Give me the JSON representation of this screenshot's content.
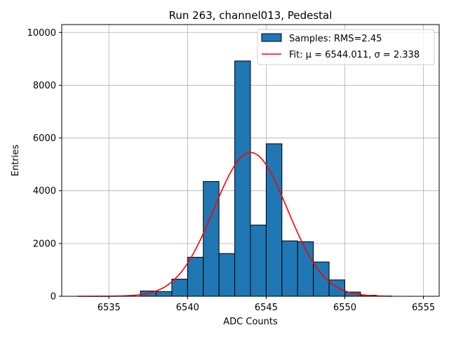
{
  "chart_data": {
    "type": "bar",
    "title": "Run 263, channel013, Pedestal",
    "xlabel": "ADC Counts",
    "ylabel": "Entries",
    "xlim": [
      6532.0,
      6556.0
    ],
    "ylim": [
      0,
      10300
    ],
    "xticks": [
      6535,
      6540,
      6545,
      6550,
      6555
    ],
    "yticks": [
      0,
      2000,
      4000,
      6000,
      8000,
      10000
    ],
    "grid": true,
    "legend_placement": "top-right",
    "bar_color": "#1f77b4",
    "fit_color": "#ff0000",
    "bins": [
      {
        "left": 6537,
        "right": 6538,
        "value": 200
      },
      {
        "left": 6538,
        "right": 6539,
        "value": 180
      },
      {
        "left": 6539,
        "right": 6540,
        "value": 650
      },
      {
        "left": 6540,
        "right": 6541,
        "value": 1480
      },
      {
        "left": 6541,
        "right": 6542,
        "value": 4350
      },
      {
        "left": 6542,
        "right": 6543,
        "value": 1620
      },
      {
        "left": 6543,
        "right": 6544,
        "value": 8920
      },
      {
        "left": 6544,
        "right": 6545,
        "value": 2700
      },
      {
        "left": 6545,
        "right": 6546,
        "value": 5780
      },
      {
        "left": 6546,
        "right": 6547,
        "value": 2100
      },
      {
        "left": 6547,
        "right": 6548,
        "value": 2070
      },
      {
        "left": 6548,
        "right": 6549,
        "value": 1300
      },
      {
        "left": 6549,
        "right": 6550,
        "value": 620
      },
      {
        "left": 6550,
        "right": 6551,
        "value": 160
      },
      {
        "left": 6551,
        "right": 6552,
        "value": 40
      },
      {
        "left": 6552,
        "right": 6553,
        "value": 10
      }
    ],
    "fit": {
      "mu": 6544.011,
      "sigma": 2.338,
      "amplitude": 5450,
      "x_range": [
        6533,
        6553
      ]
    },
    "legend": [
      {
        "kind": "patch",
        "label": "Samples: RMS=2.45"
      },
      {
        "kind": "line",
        "label": "Fit: μ = 6544.011, σ = 2.338"
      }
    ]
  }
}
